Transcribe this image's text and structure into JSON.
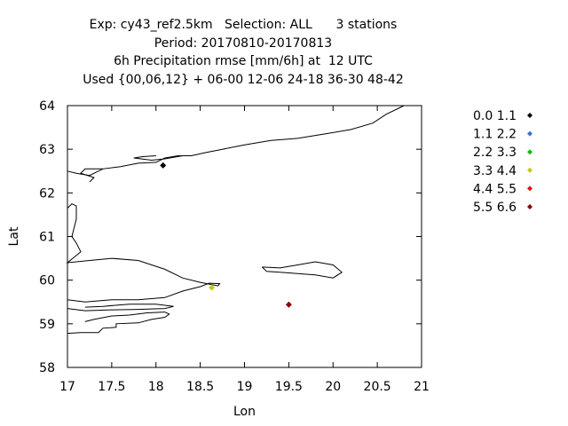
{
  "chart_data": {
    "type": "scatter",
    "title_lines": [
      "Exp: cy43_ref2.5km   Selection: ALL      3 stations",
      "Period: 20170810-20170813",
      "6h Precipitation rmse [mm/6h] at  12 UTC",
      "Used {00,06,12} + 06-00 12-06 24-18 36-30 48-42"
    ],
    "xlabel": "Lon",
    "ylabel": "Lat",
    "xlim": [
      17,
      21
    ],
    "ylim": [
      58,
      64
    ],
    "xticks": [
      "17",
      "17.5",
      "18",
      "18.5",
      "19",
      "19.5",
      "20",
      "20.5",
      "21"
    ],
    "yticks": [
      "58",
      "59",
      "60",
      "61",
      "62",
      "63",
      "64"
    ],
    "grid": false,
    "legend_position": "right",
    "series": [
      {
        "name": "0.0 1.1",
        "color": "#000000",
        "points": [
          {
            "x": 18.08,
            "y": 62.63
          }
        ]
      },
      {
        "name": "1.1 2.2",
        "color": "#3a6fd8",
        "points": []
      },
      {
        "name": "2.2 3.3",
        "color": "#14b814",
        "points": []
      },
      {
        "name": "3.3 4.4",
        "color": "#c8c814",
        "points": [
          {
            "x": 18.63,
            "y": 59.83
          }
        ]
      },
      {
        "name": "4.4 5.5",
        "color": "#e81010",
        "points": []
      },
      {
        "name": "5.5 6.6",
        "color": "#8b0000",
        "points": [
          {
            "x": 19.5,
            "y": 59.44
          }
        ]
      }
    ],
    "coastlines": [
      [
        [
          17.0,
          61.65
        ],
        [
          17.05,
          61.75
        ],
        [
          17.1,
          61.7
        ],
        [
          17.1,
          61.4
        ],
        [
          17.05,
          61.0
        ],
        [
          17.1,
          60.85
        ],
        [
          17.15,
          60.65
        ],
        [
          17.0,
          60.4
        ],
        [
          17.25,
          60.45
        ],
        [
          17.5,
          60.5
        ],
        [
          17.8,
          60.45
        ],
        [
          18.1,
          60.25
        ],
        [
          18.3,
          60.05
        ],
        [
          18.5,
          59.95
        ],
        [
          18.7,
          59.87
        ],
        [
          18.72,
          59.92
        ],
        [
          18.6,
          59.93
        ],
        [
          18.5,
          59.85
        ],
        [
          18.3,
          59.75
        ],
        [
          18.1,
          59.6
        ],
        [
          17.8,
          59.55
        ],
        [
          17.5,
          59.55
        ],
        [
          17.2,
          59.5
        ],
        [
          17.0,
          59.55
        ]
      ],
      [
        [
          17.0,
          59.35
        ],
        [
          17.2,
          59.3
        ],
        [
          17.5,
          59.32
        ],
        [
          17.8,
          59.33
        ],
        [
          18.1,
          59.35
        ],
        [
          18.2,
          59.4
        ],
        [
          18.0,
          59.45
        ],
        [
          17.7,
          59.45
        ],
        [
          17.4,
          59.4
        ],
        [
          17.2,
          59.38
        ]
      ],
      [
        [
          17.0,
          58.78
        ],
        [
          17.15,
          58.8
        ],
        [
          17.35,
          58.8
        ],
        [
          17.4,
          58.9
        ],
        [
          17.55,
          58.92
        ],
        [
          17.55,
          59.0
        ],
        [
          17.8,
          59.02
        ],
        [
          17.95,
          59.1
        ],
        [
          18.1,
          59.15
        ],
        [
          18.15,
          59.22
        ],
        [
          18.1,
          59.27
        ],
        [
          17.9,
          59.25
        ],
        [
          17.7,
          59.2
        ],
        [
          17.5,
          59.18
        ],
        [
          17.3,
          59.1
        ],
        [
          17.2,
          59.05
        ]
      ],
      [
        [
          17.0,
          62.5
        ],
        [
          17.1,
          62.45
        ],
        [
          17.25,
          62.4
        ],
        [
          17.4,
          62.55
        ],
        [
          17.6,
          62.6
        ],
        [
          17.8,
          62.68
        ],
        [
          18.0,
          62.7
        ],
        [
          18.1,
          62.8
        ],
        [
          18.25,
          62.85
        ],
        [
          18.4,
          62.85
        ],
        [
          18.55,
          62.92
        ],
        [
          18.75,
          63.0
        ],
        [
          19.0,
          63.1
        ],
        [
          19.3,
          63.2
        ],
        [
          19.6,
          63.25
        ],
        [
          19.9,
          63.35
        ],
        [
          20.2,
          63.45
        ],
        [
          20.45,
          63.6
        ],
        [
          20.6,
          63.8
        ],
        [
          20.75,
          63.95
        ],
        [
          20.8,
          64.0
        ]
      ],
      [
        [
          17.4,
          62.55
        ],
        [
          17.2,
          62.55
        ],
        [
          17.15,
          62.45
        ],
        [
          17.3,
          62.35
        ],
        [
          17.25,
          62.25
        ]
      ],
      [
        [
          18.3,
          62.85
        ],
        [
          18.1,
          62.78
        ],
        [
          17.95,
          62.75
        ],
        [
          17.75,
          62.8
        ],
        [
          17.85,
          62.83
        ],
        [
          18.0,
          62.85
        ]
      ],
      [
        [
          19.2,
          60.3
        ],
        [
          19.4,
          60.28
        ],
        [
          19.6,
          60.35
        ],
        [
          19.8,
          60.42
        ],
        [
          20.0,
          60.35
        ],
        [
          20.1,
          60.18
        ],
        [
          20.0,
          60.05
        ],
        [
          19.8,
          60.12
        ],
        [
          19.6,
          60.15
        ],
        [
          19.4,
          60.18
        ],
        [
          19.25,
          60.2
        ],
        [
          19.2,
          60.3
        ]
      ]
    ]
  }
}
